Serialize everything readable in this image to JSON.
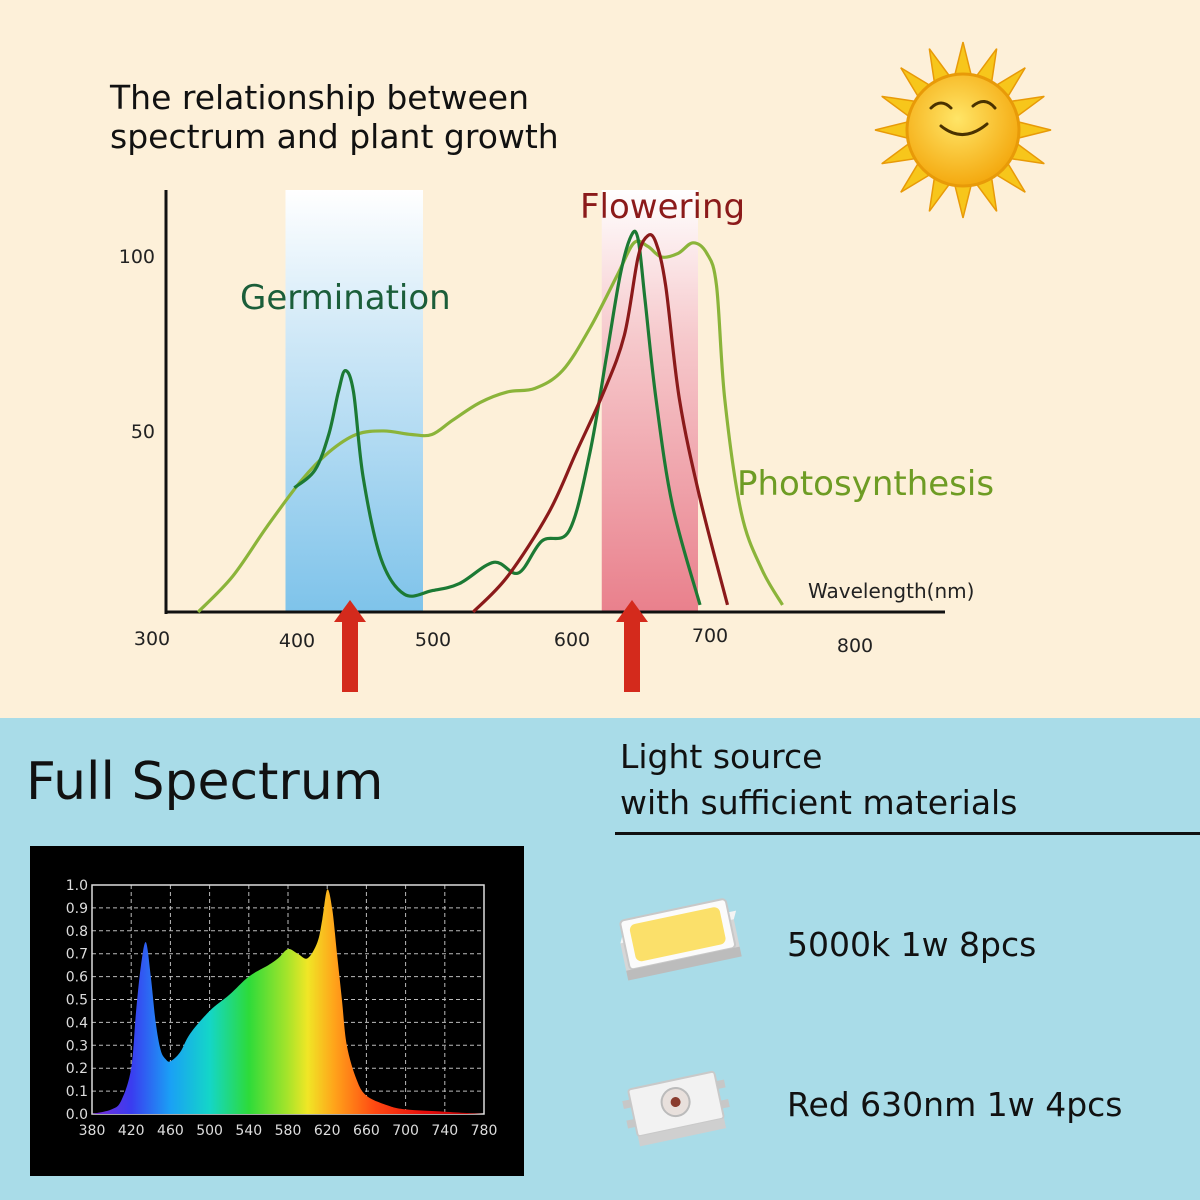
{
  "colors": {
    "top_bg": "#fdf0d9",
    "bottom_bg": "#a9dce8",
    "germination_band": "#7ec3ea",
    "flowering_band": "#e9808c",
    "chlorophyll_line": "#1c7a34",
    "phototropism_line": "#8b1a1a",
    "photosynthesis_line": "#8bb43a",
    "arrow": "#d42a1c"
  },
  "header": {
    "title_line1": "The relationship between",
    "title_line2": "spectrum and plant growth",
    "sun_icon": "sun-icon"
  },
  "chart_data": [
    {
      "type": "line",
      "title": "The relationship between spectrum and plant growth",
      "xlabel": "Wavelength(nm)",
      "ylabel": "",
      "x_ticks": [
        "300",
        "400",
        "500",
        "600",
        "700",
        "800"
      ],
      "y_ticks": [
        "50",
        "100"
      ],
      "xlim": [
        300,
        850
      ],
      "ylim": [
        0,
        115
      ],
      "bands": [
        {
          "label": "Germination",
          "range": [
            400,
            500
          ],
          "color": "#7ec3ea"
        },
        {
          "label": "Flowering",
          "range": [
            630,
            700
          ],
          "color": "#e9808c"
        }
      ],
      "arrows_x": [
        436,
        640
      ],
      "annotations": [
        {
          "text": "Germination",
          "x": 435,
          "y": 90
        },
        {
          "text": "Flowering",
          "x": 680,
          "y": 117
        },
        {
          "text": "Photosynthesis",
          "x": 810,
          "y": 37
        }
      ],
      "series": [
        {
          "color": "#8bb43a",
          "x": [
            335,
            360,
            385,
            410,
            430,
            450,
            470,
            490,
            505,
            520,
            540,
            560,
            580,
            600,
            620,
            640,
            652,
            662,
            672,
            684,
            695,
            705,
            712,
            718,
            730,
            745,
            760
          ],
          "y": [
            0,
            10,
            24,
            37,
            45,
            50,
            51,
            50,
            50,
            54,
            59,
            62,
            63,
            68,
            80,
            95,
            104,
            103,
            100,
            101,
            104,
            101,
            92,
            60,
            28,
            12,
            2
          ]
        },
        {
          "color": "#1c7a34",
          "x": [
            405,
            420,
            430,
            437,
            442,
            448,
            455,
            468,
            485,
            505,
            525,
            550,
            568,
            585,
            605,
            620,
            632,
            642,
            650,
            655,
            660,
            668,
            680,
            700
          ],
          "y": [
            35,
            40,
            50,
            62,
            68,
            62,
            38,
            15,
            5,
            6,
            8,
            14,
            11,
            20,
            23,
            45,
            72,
            95,
            106,
            105,
            88,
            60,
            30,
            2
          ]
        },
        {
          "color": "#8b1a1a",
          "x": [
            535,
            560,
            590,
            610,
            630,
            645,
            655,
            662,
            668,
            675,
            685,
            700,
            720
          ],
          "y": [
            0,
            10,
            28,
            45,
            62,
            78,
            100,
            106,
            104,
            92,
            60,
            32,
            2
          ]
        }
      ]
    },
    {
      "type": "area",
      "title": "",
      "xlabel": "",
      "ylabel": "",
      "x_ticks": [
        "380",
        "420",
        "460",
        "500",
        "540",
        "580",
        "620",
        "660",
        "700",
        "740",
        "780"
      ],
      "y_ticks": [
        "0.0",
        "0.1",
        "0.2",
        "0.3",
        "0.4",
        "0.5",
        "0.6",
        "0.7",
        "0.8",
        "0.9",
        "1.0"
      ],
      "xlim": [
        380,
        780
      ],
      "ylim": [
        0,
        1.0
      ],
      "grid": true,
      "fill": "rainbow",
      "x": [
        380,
        400,
        410,
        420,
        425,
        430,
        435,
        440,
        445,
        450,
        455,
        460,
        470,
        480,
        500,
        520,
        540,
        560,
        570,
        580,
        590,
        600,
        610,
        615,
        620,
        625,
        630,
        635,
        640,
        650,
        660,
        680,
        700,
        740,
        780
      ],
      "y": [
        0,
        0.02,
        0.06,
        0.2,
        0.45,
        0.65,
        0.75,
        0.6,
        0.4,
        0.28,
        0.24,
        0.23,
        0.27,
        0.35,
        0.45,
        0.52,
        0.6,
        0.65,
        0.68,
        0.72,
        0.7,
        0.68,
        0.75,
        0.85,
        0.98,
        0.9,
        0.7,
        0.5,
        0.3,
        0.15,
        0.08,
        0.04,
        0.02,
        0.01,
        0
      ]
    }
  ],
  "bottom": {
    "full_spectrum_title": "Full Spectrum",
    "light_source_line1": "Light source",
    "light_source_line2": "with sufficient materials",
    "leds": [
      {
        "label": "5000k 1w 8pcs",
        "icon": "white-led-chip-icon"
      },
      {
        "label": "Red 630nm   1w 4pcs",
        "icon": "red-led-chip-icon"
      }
    ]
  }
}
